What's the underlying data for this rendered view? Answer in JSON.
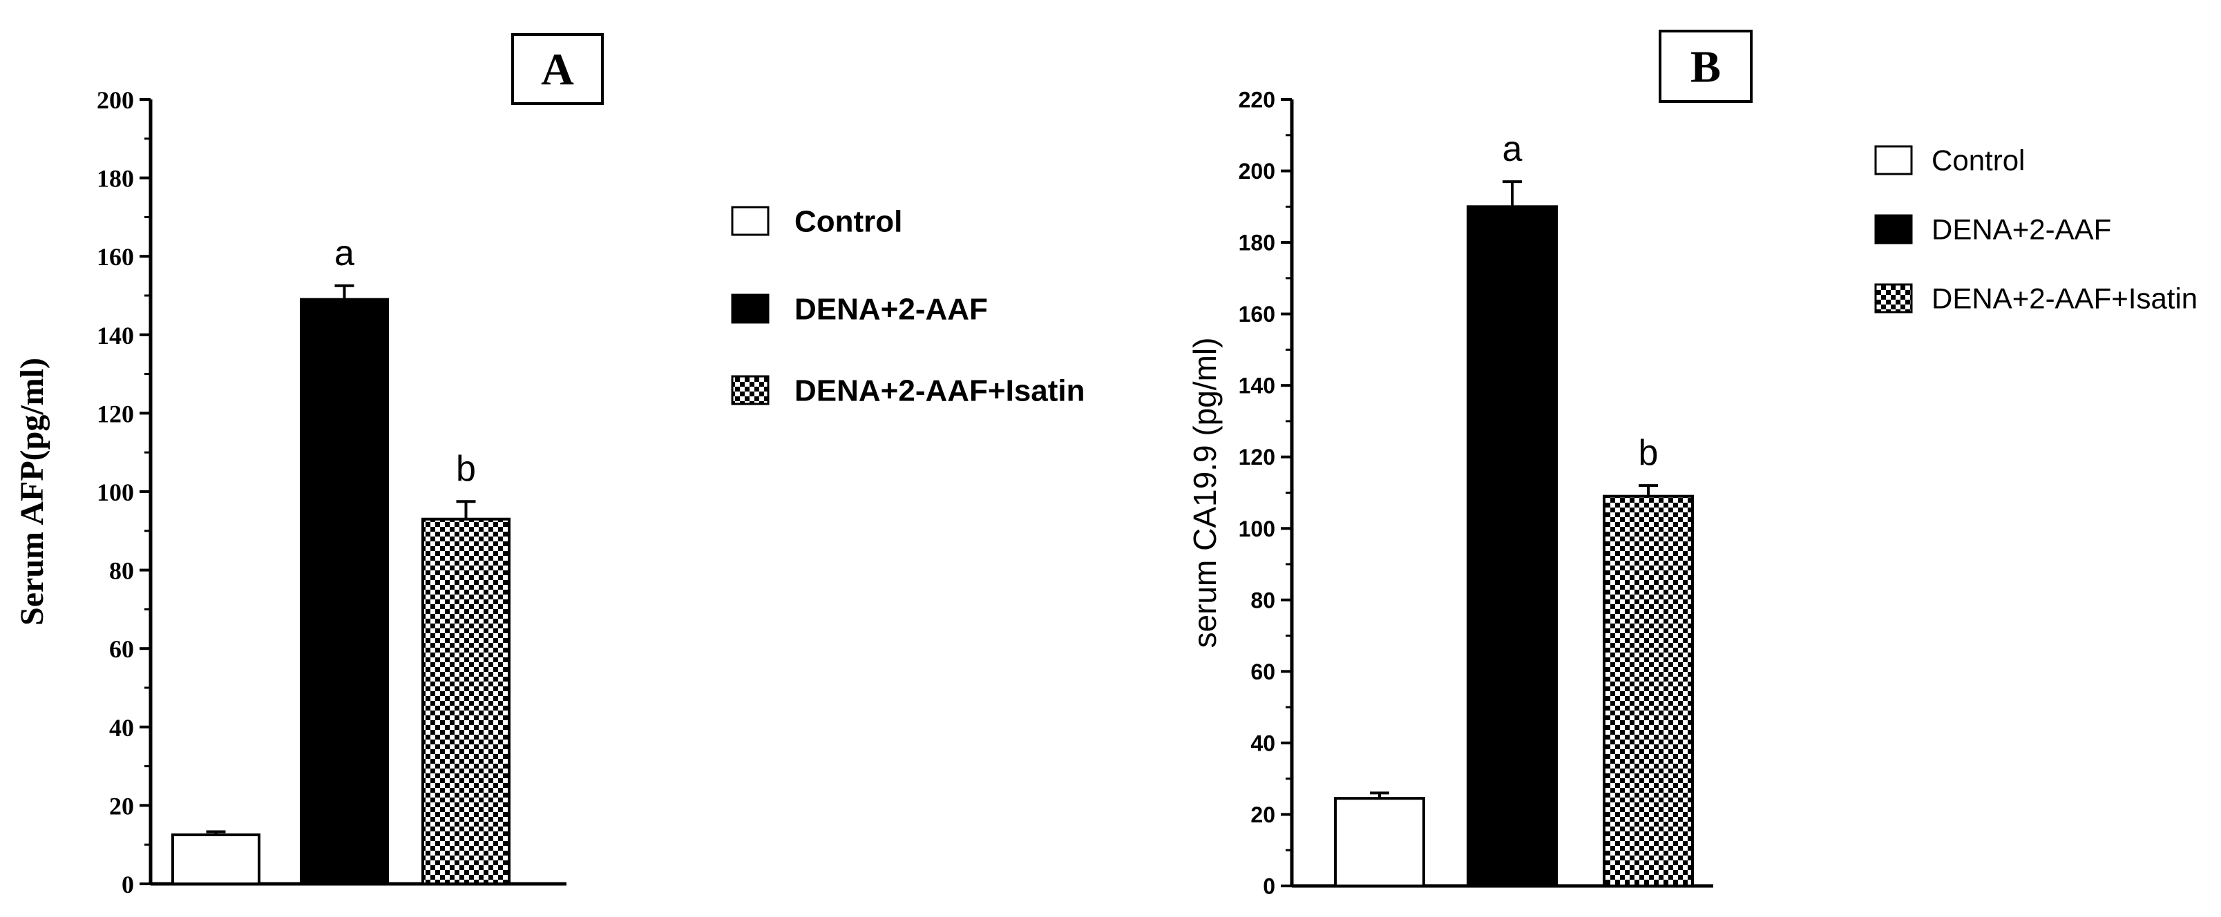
{
  "chart_data": [
    {
      "panel_label": "A",
      "type": "bar",
      "ylabel": "Serum AFP(pg/ml)",
      "ylim": [
        0,
        200
      ],
      "yticks": [
        0,
        20,
        40,
        60,
        80,
        100,
        120,
        140,
        160,
        180,
        200
      ],
      "categories": [
        "Control",
        "DENA+2-AAF",
        "DENA+2-AAF+Isatin"
      ],
      "values": [
        12.5,
        149,
        93
      ],
      "errors": [
        0.8,
        3.5,
        4.5
      ],
      "significance": [
        "",
        "a",
        "b"
      ],
      "fills": [
        "white",
        "black",
        "checker"
      ],
      "legend": [
        {
          "label": "Control",
          "fill": "white"
        },
        {
          "label": "DENA+2-AAF",
          "fill": "black"
        },
        {
          "label": "DENA+2-AAF+Isatin",
          "fill": "checker"
        }
      ],
      "legend_position": "right"
    },
    {
      "panel_label": "B",
      "type": "bar",
      "ylabel": "serum CA19.9 (pg/ml)",
      "ylim": [
        0,
        220
      ],
      "yticks": [
        0,
        20,
        40,
        60,
        80,
        100,
        120,
        140,
        160,
        180,
        200,
        220
      ],
      "categories": [
        "Control",
        "DENA+2-AAF",
        "DENA+2-AAF+Isatin"
      ],
      "values": [
        24.5,
        190,
        109
      ],
      "errors": [
        1.5,
        7,
        3
      ],
      "significance": [
        "",
        "a",
        "b"
      ],
      "fills": [
        "white",
        "black",
        "checker"
      ],
      "legend": [
        {
          "label": "Control",
          "fill": "white"
        },
        {
          "label": "DENA+2-AAF",
          "fill": "black"
        },
        {
          "label": "DENA+2-AAF+Isatin",
          "fill": "checker"
        }
      ],
      "legend_position": "right"
    }
  ],
  "colors": {
    "ink": "#000000",
    "background": "#ffffff"
  }
}
